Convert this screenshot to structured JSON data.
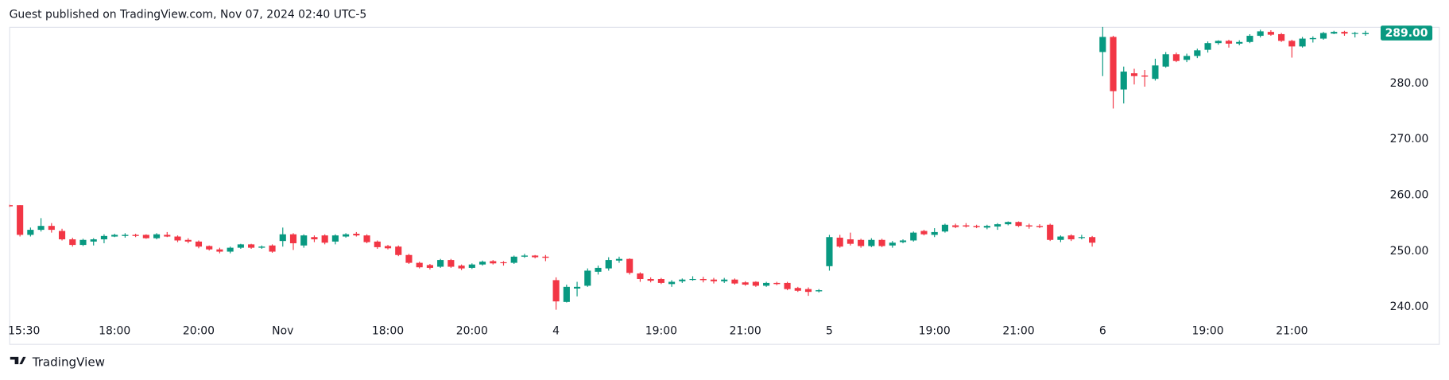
{
  "header": {
    "text": "Guest published on TradingView.com, Nov 07, 2024 02:40 UTC-5"
  },
  "footer": {
    "brand": "TradingView"
  },
  "chart_data": {
    "type": "candlestick",
    "up_color": "#089981",
    "down_color": "#f23645",
    "grid": false,
    "ylim": [
      233.4,
      290.1
    ],
    "yticks": [
      {
        "value": 240,
        "label": "240.00"
      },
      {
        "value": 250,
        "label": "250.00"
      },
      {
        "value": 260,
        "label": "260.00"
      },
      {
        "value": 270,
        "label": "270.00"
      },
      {
        "value": 280,
        "label": "280.00"
      }
    ],
    "last_price": {
      "value": 289.0,
      "label": "289.00"
    },
    "categories": [
      "15:30",
      null,
      null,
      null,
      null,
      null,
      null,
      null,
      null,
      null,
      "18:00",
      null,
      null,
      null,
      null,
      null,
      null,
      null,
      "20:00",
      null,
      null,
      null,
      null,
      null,
      null,
      null,
      "Nov",
      null,
      null,
      null,
      null,
      null,
      null,
      null,
      null,
      null,
      "18:00",
      null,
      null,
      null,
      null,
      null,
      null,
      null,
      "20:00",
      null,
      null,
      null,
      null,
      null,
      null,
      null,
      "4",
      null,
      null,
      null,
      null,
      null,
      null,
      null,
      null,
      null,
      "19:00",
      null,
      null,
      null,
      null,
      null,
      null,
      null,
      "21:00",
      null,
      null,
      null,
      null,
      null,
      null,
      null,
      "5",
      null,
      null,
      null,
      null,
      null,
      null,
      null,
      null,
      null,
      "19:00",
      null,
      null,
      null,
      null,
      null,
      null,
      null,
      "21:00",
      null,
      null,
      null,
      null,
      null,
      null,
      null,
      "6",
      null,
      null,
      null,
      null,
      null,
      null,
      null,
      null,
      null,
      "19:00",
      null,
      null,
      null,
      null,
      null,
      null,
      null,
      "21:00",
      null,
      null,
      null,
      null,
      null,
      null,
      null
    ],
    "open": [
      258.2,
      258.2,
      252.9,
      253.8,
      254.5,
      253.6,
      252.1,
      251.1,
      251.7,
      252.1,
      252.6,
      252.7,
      252.9,
      252.9,
      252.3,
      252.9,
      252.6,
      252.0,
      251.7,
      250.9,
      250.3,
      249.9,
      250.6,
      251.2,
      250.6,
      251.0,
      251.8,
      253.0,
      251.0,
      252.5,
      252.8,
      251.7,
      252.6,
      253.1,
      252.8,
      251.7,
      250.9,
      250.8,
      249.3,
      247.9,
      247.5,
      247.2,
      248.4,
      247.4,
      247.0,
      247.6,
      248.2,
      248.0,
      247.9,
      249.0,
      249.2,
      249.0,
      244.8,
      240.9,
      243.3,
      243.8,
      246.3,
      246.9,
      248.3,
      248.6,
      246.0,
      245.0,
      245.0,
      244.1,
      244.6,
      244.9,
      245.0,
      244.9,
      244.6,
      244.9,
      244.4,
      244.5,
      243.8,
      244.3,
      244.3,
      243.4,
      243.2,
      242.8,
      247.3,
      252.4,
      252.1,
      252.0,
      250.9,
      252.0,
      251.0,
      251.6,
      251.9,
      253.6,
      252.9,
      253.5,
      254.6,
      254.6,
      254.5,
      254.2,
      254.4,
      254.8,
      255.2,
      254.6,
      254.5,
      254.7,
      252.0,
      252.8,
      252.4,
      252.5,
      285.6,
      288.3,
      278.9,
      281.8,
      281.4,
      280.8,
      283.0,
      285.2,
      284.2,
      284.9,
      286.0,
      287.2,
      287.6,
      287.1,
      287.4,
      288.5,
      289.2,
      288.8,
      287.6,
      286.6,
      287.9,
      288.0,
      288.9,
      289.2,
      288.9,
      288.8
    ],
    "high": [
      258.3,
      258.2,
      254.2,
      255.9,
      255.0,
      254.0,
      252.4,
      252.2,
      252.3,
      253.0,
      253.1,
      253.2,
      253.1,
      253.0,
      253.2,
      253.4,
      252.8,
      252.3,
      251.9,
      251.0,
      250.6,
      250.8,
      251.3,
      251.3,
      251.0,
      251.2,
      254.2,
      253.2,
      253.0,
      252.8,
      253.0,
      253.0,
      253.2,
      253.4,
      253.0,
      251.9,
      251.1,
      251.0,
      249.5,
      248.1,
      247.7,
      248.6,
      248.6,
      247.6,
      247.8,
      248.3,
      248.4,
      248.2,
      249.2,
      249.5,
      249.3,
      249.3,
      245.3,
      244.0,
      244.5,
      246.9,
      247.4,
      248.9,
      249.0,
      248.7,
      246.2,
      245.3,
      245.2,
      244.8,
      245.1,
      245.5,
      245.4,
      245.2,
      245.2,
      245.1,
      244.6,
      244.6,
      244.5,
      244.5,
      244.5,
      243.6,
      243.5,
      243.2,
      252.9,
      252.9,
      253.3,
      252.2,
      252.3,
      252.2,
      251.8,
      252.1,
      253.5,
      253.8,
      254.1,
      254.9,
      254.9,
      255.0,
      254.7,
      254.7,
      255.0,
      255.3,
      255.3,
      254.9,
      254.8,
      254.9,
      252.8,
      253.0,
      252.9,
      252.7,
      290.1,
      288.5,
      283.0,
      282.6,
      282.4,
      284.4,
      285.6,
      285.5,
      285.3,
      286.2,
      287.5,
      287.7,
      287.8,
      287.7,
      288.8,
      289.6,
      289.5,
      289.0,
      287.8,
      288.3,
      288.4,
      289.2,
      289.4,
      289.4,
      289.2,
      289.4
    ],
    "low": [
      257.9,
      252.6,
      252.6,
      253.5,
      253.3,
      251.9,
      250.8,
      250.9,
      251.0,
      251.4,
      252.5,
      252.4,
      252.5,
      252.2,
      252.1,
      252.5,
      251.6,
      251.4,
      250.5,
      250.1,
      249.6,
      249.6,
      250.4,
      250.4,
      250.4,
      249.7,
      250.8,
      250.2,
      250.6,
      251.6,
      251.2,
      251.2,
      252.4,
      252.6,
      251.4,
      250.4,
      250.3,
      249.1,
      247.7,
      246.9,
      246.7,
      247.0,
      247.0,
      246.6,
      246.8,
      247.4,
      247.6,
      247.4,
      247.7,
      248.8,
      248.7,
      248.2,
      239.5,
      240.8,
      241.9,
      243.6,
      245.8,
      246.5,
      247.9,
      245.8,
      244.5,
      244.4,
      244.1,
      243.6,
      244.3,
      244.7,
      244.4,
      244.2,
      244.3,
      244.0,
      243.8,
      243.6,
      243.6,
      243.9,
      243.0,
      242.7,
      242.0,
      242.6,
      246.5,
      250.6,
      251.0,
      250.6,
      250.7,
      250.7,
      250.6,
      251.4,
      251.7,
      252.8,
      252.5,
      253.3,
      254.1,
      254.2,
      254.1,
      253.9,
      253.8,
      254.6,
      254.3,
      254.0,
      254.1,
      251.8,
      251.6,
      251.8,
      252.1,
      250.8,
      281.3,
      275.5,
      276.4,
      279.8,
      279.4,
      280.5,
      282.8,
      283.8,
      283.8,
      284.5,
      285.5,
      286.9,
      286.4,
      286.8,
      287.2,
      288.2,
      288.5,
      287.4,
      284.6,
      286.4,
      287.3,
      287.8,
      288.8,
      288.5,
      288.2,
      288.5
    ],
    "close": [
      258.0,
      252.9,
      253.8,
      254.5,
      253.8,
      252.1,
      251.1,
      252.0,
      252.1,
      252.7,
      252.9,
      252.9,
      252.7,
      252.3,
      253.0,
      252.6,
      251.9,
      251.7,
      250.8,
      250.3,
      249.9,
      250.6,
      251.2,
      250.6,
      250.8,
      249.9,
      253.0,
      251.4,
      252.8,
      252.1,
      251.5,
      252.8,
      253.0,
      252.8,
      251.6,
      250.7,
      250.5,
      249.3,
      247.9,
      247.1,
      247.0,
      248.4,
      247.2,
      246.9,
      247.6,
      248.1,
      247.8,
      247.9,
      249.0,
      249.2,
      248.9,
      248.8,
      241.0,
      243.6,
      243.6,
      246.5,
      247.0,
      248.4,
      248.6,
      246.1,
      245.0,
      244.7,
      244.3,
      244.5,
      244.9,
      245.0,
      244.8,
      244.6,
      244.9,
      244.2,
      244.0,
      243.8,
      244.3,
      244.1,
      243.2,
      242.9,
      242.7,
      243.0,
      252.5,
      250.8,
      251.3,
      250.9,
      252.0,
      250.9,
      251.5,
      251.9,
      253.3,
      253.0,
      253.4,
      254.7,
      254.3,
      254.4,
      254.3,
      254.5,
      254.8,
      255.2,
      254.5,
      254.4,
      254.3,
      252.0,
      252.6,
      252.1,
      252.5,
      251.5,
      288.3,
      278.6,
      282.1,
      281.3,
      281.2,
      283.2,
      285.2,
      284.0,
      284.9,
      285.9,
      287.2,
      287.6,
      287.1,
      287.4,
      288.5,
      289.3,
      288.7,
      287.6,
      286.6,
      288.0,
      288.1,
      289.0,
      289.2,
      288.9,
      289.0,
      289.0
    ]
  }
}
